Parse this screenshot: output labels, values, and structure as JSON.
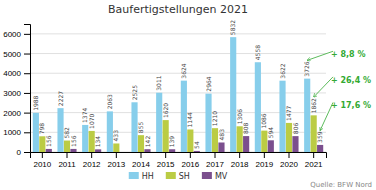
{
  "chart_data": {
    "type": "bar",
    "title": "Baufertigstellungen 2021",
    "categories": [
      "2010",
      "2011",
      "2012",
      "2013",
      "2014",
      "2015",
      "2016",
      "2017",
      "2018",
      "2019",
      "2020",
      "2021"
    ],
    "series": [
      {
        "name": "HH",
        "color": "#87CEEB",
        "values": [
          1988,
          2227,
          1374,
          2063,
          2525,
          3011,
          3624,
          2964,
          5832,
          4558,
          3622,
          3726
        ]
      },
      {
        "name": "SH",
        "color": "#BBCC44",
        "values": [
          798,
          582,
          1070,
          433,
          855,
          1620,
          1144,
          1210,
          1306,
          1086,
          1477,
          1862
        ]
      },
      {
        "name": "MV",
        "color": "#7B4F8E",
        "values": [
          156,
          156,
          134,
          0,
          142,
          139,
          54,
          483,
          808,
          594,
          806,
          359
        ]
      }
    ],
    "ylim": [
      0,
      6500
    ],
    "yticks": [
      0,
      1000,
      2000,
      3000,
      4000,
      5000,
      6000
    ],
    "grid": true,
    "legend": "bottom",
    "data_labels": true,
    "annotations": [
      {
        "text": "+ 8,8 %",
        "color": "#33AA33"
      },
      {
        "text": "+ 26,4 %",
        "color": "#33AA33"
      },
      {
        "text": "+ 17,6 %",
        "color": "#33AA33"
      }
    ],
    "source": "Quelle: BFW Nord"
  }
}
